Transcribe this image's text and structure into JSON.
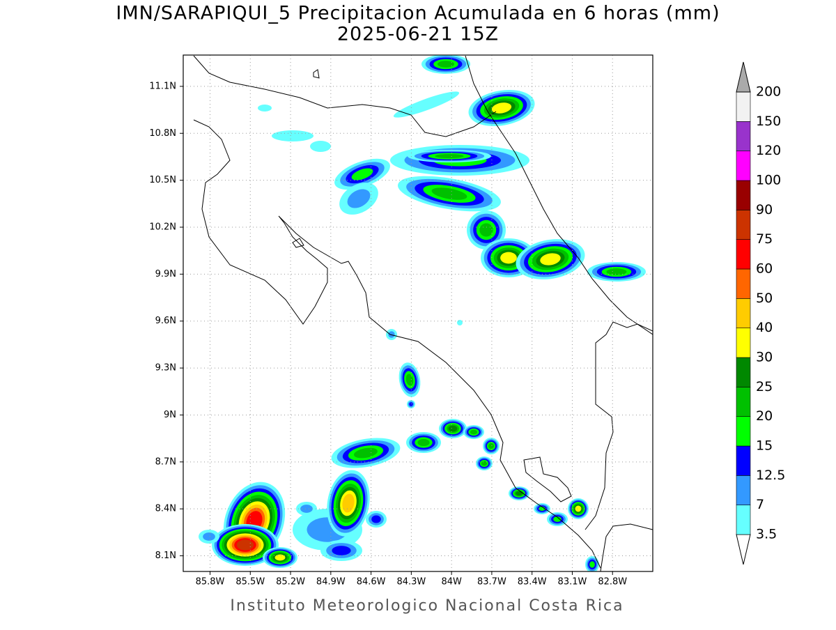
{
  "title": "IMN/SARAPIQUI_5 Precipitacion Acumulada en 6 horas (mm)",
  "subtitle": "2025-06-21 15Z",
  "footer": "Instituto Meteorologico Nacional Costa Rica",
  "map": {
    "xlim": [
      -86,
      -82.5
    ],
    "ylim": [
      8,
      11.3
    ],
    "grid": true,
    "xticks": [
      {
        "value": -85.8,
        "label": "85.8W"
      },
      {
        "value": -85.5,
        "label": "85.5W"
      },
      {
        "value": -85.2,
        "label": "85.2W"
      },
      {
        "value": -84.9,
        "label": "84.9W"
      },
      {
        "value": -84.6,
        "label": "84.6W"
      },
      {
        "value": -84.3,
        "label": "84.3W"
      },
      {
        "value": -84,
        "label": "84W"
      },
      {
        "value": -83.7,
        "label": "83.7W"
      },
      {
        "value": -83.4,
        "label": "83.4W"
      },
      {
        "value": -83.1,
        "label": "83.1W"
      },
      {
        "value": -82.8,
        "label": "82.8W"
      }
    ],
    "yticks": [
      {
        "value": 8.1,
        "label": "8.1N"
      },
      {
        "value": 8.4,
        "label": "8.4N"
      },
      {
        "value": 8.7,
        "label": "8.7N"
      },
      {
        "value": 9,
        "label": "9N"
      },
      {
        "value": 9.3,
        "label": "9.3N"
      },
      {
        "value": 9.6,
        "label": "9.6N"
      },
      {
        "value": 9.9,
        "label": "9.9N"
      },
      {
        "value": 10.2,
        "label": "10.2N"
      },
      {
        "value": 10.5,
        "label": "10.5N"
      },
      {
        "value": 10.8,
        "label": "10.8N"
      },
      {
        "value": 11.1,
        "label": "11.1N"
      }
    ]
  },
  "colorbar": {
    "levels": [
      3.5,
      7,
      12.5,
      15,
      20,
      25,
      30,
      40,
      50,
      60,
      75,
      90,
      100,
      120,
      150,
      200
    ],
    "colors": [
      "#ffffff",
      "#66ffff",
      "#3399ff",
      "#0000ff",
      "#00ff00",
      "#00c000",
      "#008800",
      "#ffff00",
      "#ffcc00",
      "#ff6600",
      "#ff0000",
      "#cc3300",
      "#990000",
      "#ff00ff",
      "#9933cc",
      "#f2f2f2",
      "#aaaaaa"
    ]
  }
}
